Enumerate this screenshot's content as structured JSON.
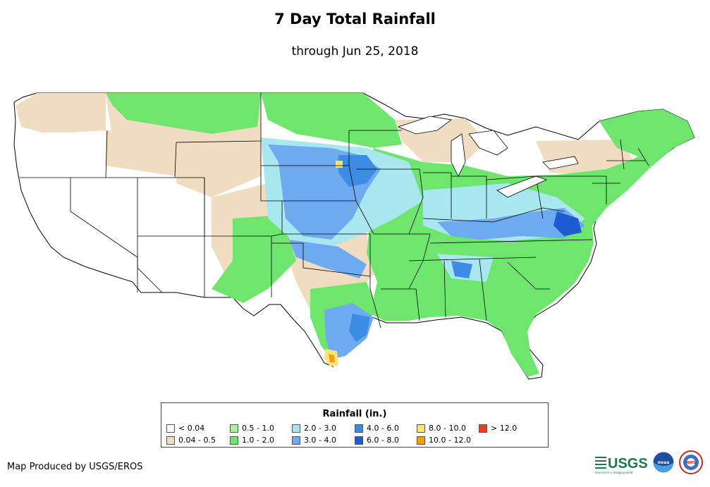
{
  "map": {
    "title": "7 Day Total Rainfall",
    "subtitle": "through Jun 25, 2018",
    "credit": "Map Produced by USGS/EROS"
  },
  "legend": {
    "title": "Rainfall (in.)",
    "items": [
      {
        "label": "< 0.04",
        "color": "#ffffff"
      },
      {
        "label": "0.04 - 0.5",
        "color": "#f0dcc0"
      },
      {
        "label": "0.5 - 1.0",
        "color": "#aaf0a0"
      },
      {
        "label": "1.0 - 2.0",
        "color": "#6ee66e"
      },
      {
        "label": "2.0 - 3.0",
        "color": "#a8e6f0"
      },
      {
        "label": "3.0 - 4.0",
        "color": "#6eaaf0"
      },
      {
        "label": "4.0 - 6.0",
        "color": "#3c8ce6"
      },
      {
        "label": "6.0 - 8.0",
        "color": "#1e5ad2"
      },
      {
        "label": "8.0 - 10.0",
        "color": "#fae678"
      },
      {
        "label": "10.0 - 12.0",
        "color": "#f59b14"
      },
      {
        "label": "> 12.0",
        "color": "#f03c14"
      }
    ]
  },
  "logos": {
    "usgs": "USGS",
    "usgs_tagline": "science for a changing world",
    "noaa": "noaa",
    "nws": "NWS"
  }
}
